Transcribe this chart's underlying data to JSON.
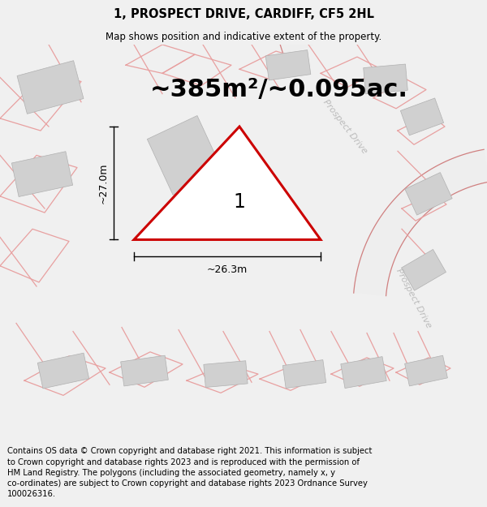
{
  "title": "1, PROSPECT DRIVE, CARDIFF, CF5 2HL",
  "subtitle": "Map shows position and indicative extent of the property.",
  "area_label": "~385m²/~0.095ac.",
  "plot_number": "1",
  "dim_horizontal": "~26.3m",
  "dim_vertical": "~27.0m",
  "road_label_1": "Prospect Drive",
  "road_label_2": "Prospect Drive",
  "footer": "Contains OS data © Crown copyright and database right 2021. This information is subject to Crown copyright and database rights 2023 and is reproduced with the permission of HM Land Registry. The polygons (including the associated geometry, namely x, y co-ordinates) are subject to Crown copyright and database rights 2023 Ordnance Survey 100026316.",
  "bg_color": "#f0f0f0",
  "map_bg": "#f8f8f8",
  "plot_color": "#cc0000",
  "building_color": "#d0d0d0",
  "boundary_color": "#e8a0a0",
  "title_fontsize": 10.5,
  "subtitle_fontsize": 8.5,
  "area_fontsize": 22,
  "footer_fontsize": 7.2,
  "road_line_color": "#d08080",
  "road_label_color": "#bbbbbb"
}
